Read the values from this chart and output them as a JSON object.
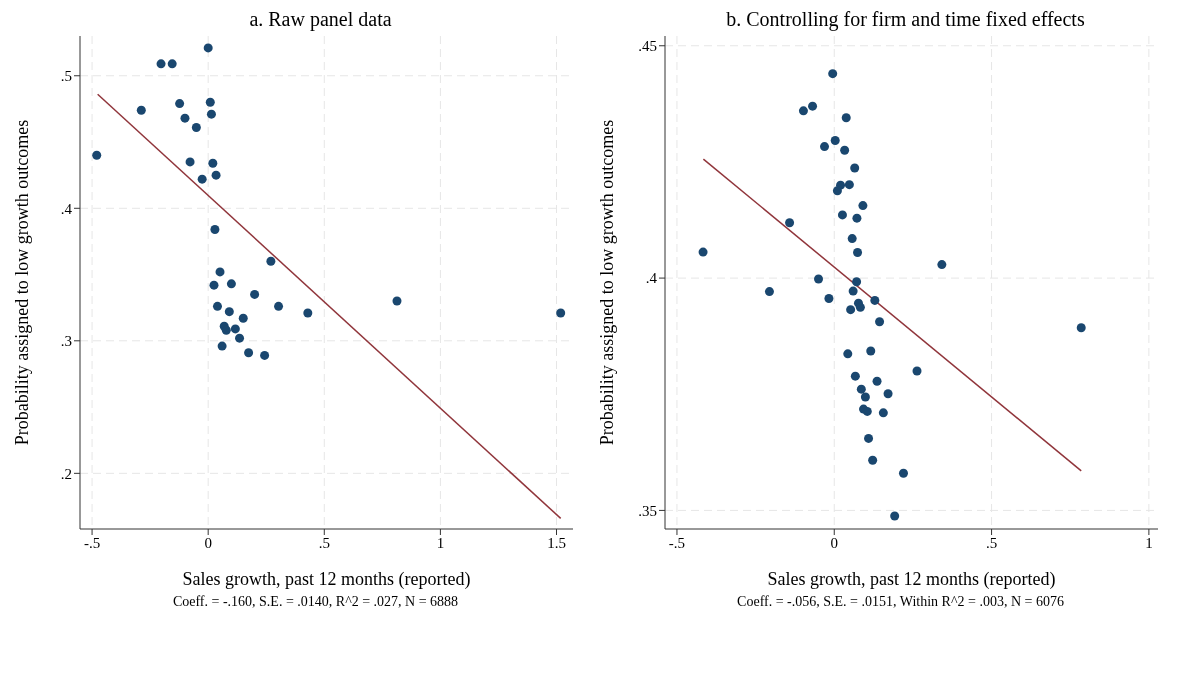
{
  "chart_data": [
    {
      "type": "scatter",
      "title": "a. Raw panel data",
      "xlabel": "Sales growth, past 12 months (reported)",
      "ylabel": "Probability assigned to low growth outcomes",
      "annotations": [
        "Coeff. = -.160, S.E. = .0140, R^2 = .027, N = 6888"
      ],
      "xlim": [
        -0.552,
        1.571
      ],
      "ylim": [
        0.158,
        0.53
      ],
      "xticks": [
        {
          "value": -0.5,
          "label": "-.5"
        },
        {
          "value": 0,
          "label": "0"
        },
        {
          "value": 0.5,
          "label": ".5"
        },
        {
          "value": 1,
          "label": "1"
        },
        {
          "value": 1.5,
          "label": "1.5"
        }
      ],
      "yticks": [
        {
          "value": 0.2,
          "label": ".2"
        },
        {
          "value": 0.3,
          "label": ".3"
        },
        {
          "value": 0.4,
          "label": ".4"
        },
        {
          "value": 0.5,
          "label": ".5"
        }
      ],
      "grid": true,
      "series": [
        {
          "marker": "circle",
          "color": "#1a476f",
          "x": [
            -0.48,
            -0.288,
            -0.203,
            -0.155,
            0.0,
            -0.123,
            0.009,
            0.014,
            -0.1,
            -0.051,
            -0.078,
            0.02,
            -0.026,
            0.034,
            0.029,
            0.27,
            0.051,
            0.025,
            0.1,
            0.2,
            0.04,
            0.303,
            0.091,
            0.429,
            0.813,
            1.518,
            0.151,
            0.069,
            0.078,
            0.117,
            0.135,
            0.06,
            0.174,
            0.243
          ],
          "values": [
            0.44,
            0.474,
            0.509,
            0.509,
            0.521,
            0.479,
            0.48,
            0.471,
            0.468,
            0.461,
            0.435,
            0.434,
            0.422,
            0.425,
            0.384,
            0.36,
            0.352,
            0.342,
            0.343,
            0.335,
            0.326,
            0.326,
            0.322,
            0.321,
            0.33,
            0.321,
            0.317,
            0.311,
            0.308,
            0.309,
            0.302,
            0.296,
            0.291,
            0.289
          ]
        },
        {
          "type": "line",
          "marker": "none",
          "color": "#90353b",
          "x": [
            -0.476,
            1.518
          ],
          "values": [
            0.486,
            0.166
          ]
        }
      ]
    },
    {
      "type": "scatter",
      "title": "b. Controlling for firm and time fixed effects",
      "xlabel": "Sales growth, past 12 months (reported)",
      "ylabel": "Probability assigned to low growth outcomes",
      "annotations": [
        "Coeff. = -.056, S.E. = .0151, Within R^2 = .003, N = 6076"
      ],
      "xlim": [
        -0.538,
        1.029
      ],
      "ylim": [
        0.346,
        0.4521
      ],
      "xticks": [
        {
          "value": -0.5,
          "label": "-.5"
        },
        {
          "value": 0,
          "label": "0"
        },
        {
          "value": 0.5,
          "label": ".5"
        },
        {
          "value": 1,
          "label": "1"
        }
      ],
      "yticks": [
        {
          "value": 0.35,
          "label": ".35"
        },
        {
          "value": 0.4,
          "label": ".4"
        },
        {
          "value": 0.45,
          "label": ".45"
        }
      ],
      "grid": true,
      "series": [
        {
          "marker": "circle",
          "color": "#1a476f",
          "x": [
            -0.005,
            -0.098,
            -0.069,
            0.038,
            0.003,
            -0.031,
            0.033,
            0.065,
            0.02,
            0.048,
            0.01,
            0.091,
            0.026,
            0.072,
            -0.142,
            0.057,
            -0.417,
            0.074,
            0.342,
            -0.05,
            0.071,
            -0.206,
            0.06,
            -0.017,
            0.077,
            0.129,
            0.083,
            0.052,
            0.144,
            0.785,
            0.116,
            0.043,
            0.263,
            0.067,
            0.136,
            0.086,
            0.099,
            0.171,
            0.093,
            0.105,
            0.156,
            0.109,
            0.122,
            0.22,
            0.192
          ],
          "values": [
            0.444,
            0.436,
            0.437,
            0.4345,
            0.4296,
            0.4283,
            0.4275,
            0.4237,
            0.42,
            0.4201,
            0.4188,
            0.4156,
            0.4136,
            0.4129,
            0.4119,
            0.4085,
            0.4056,
            0.4055,
            0.4029,
            0.3998,
            0.3992,
            0.3971,
            0.3972,
            0.3956,
            0.3946,
            0.3952,
            0.3937,
            0.3932,
            0.3906,
            0.3893,
            0.3843,
            0.3837,
            0.38,
            0.3789,
            0.3778,
            0.3761,
            0.3744,
            0.3751,
            0.3718,
            0.3713,
            0.371,
            0.3655,
            0.3608,
            0.358,
            0.3488
          ]
        },
        {
          "type": "line",
          "marker": "none",
          "color": "#90353b",
          "x": [
            -0.416,
            0.785
          ],
          "values": [
            0.4256,
            0.3585
          ]
        }
      ]
    }
  ]
}
